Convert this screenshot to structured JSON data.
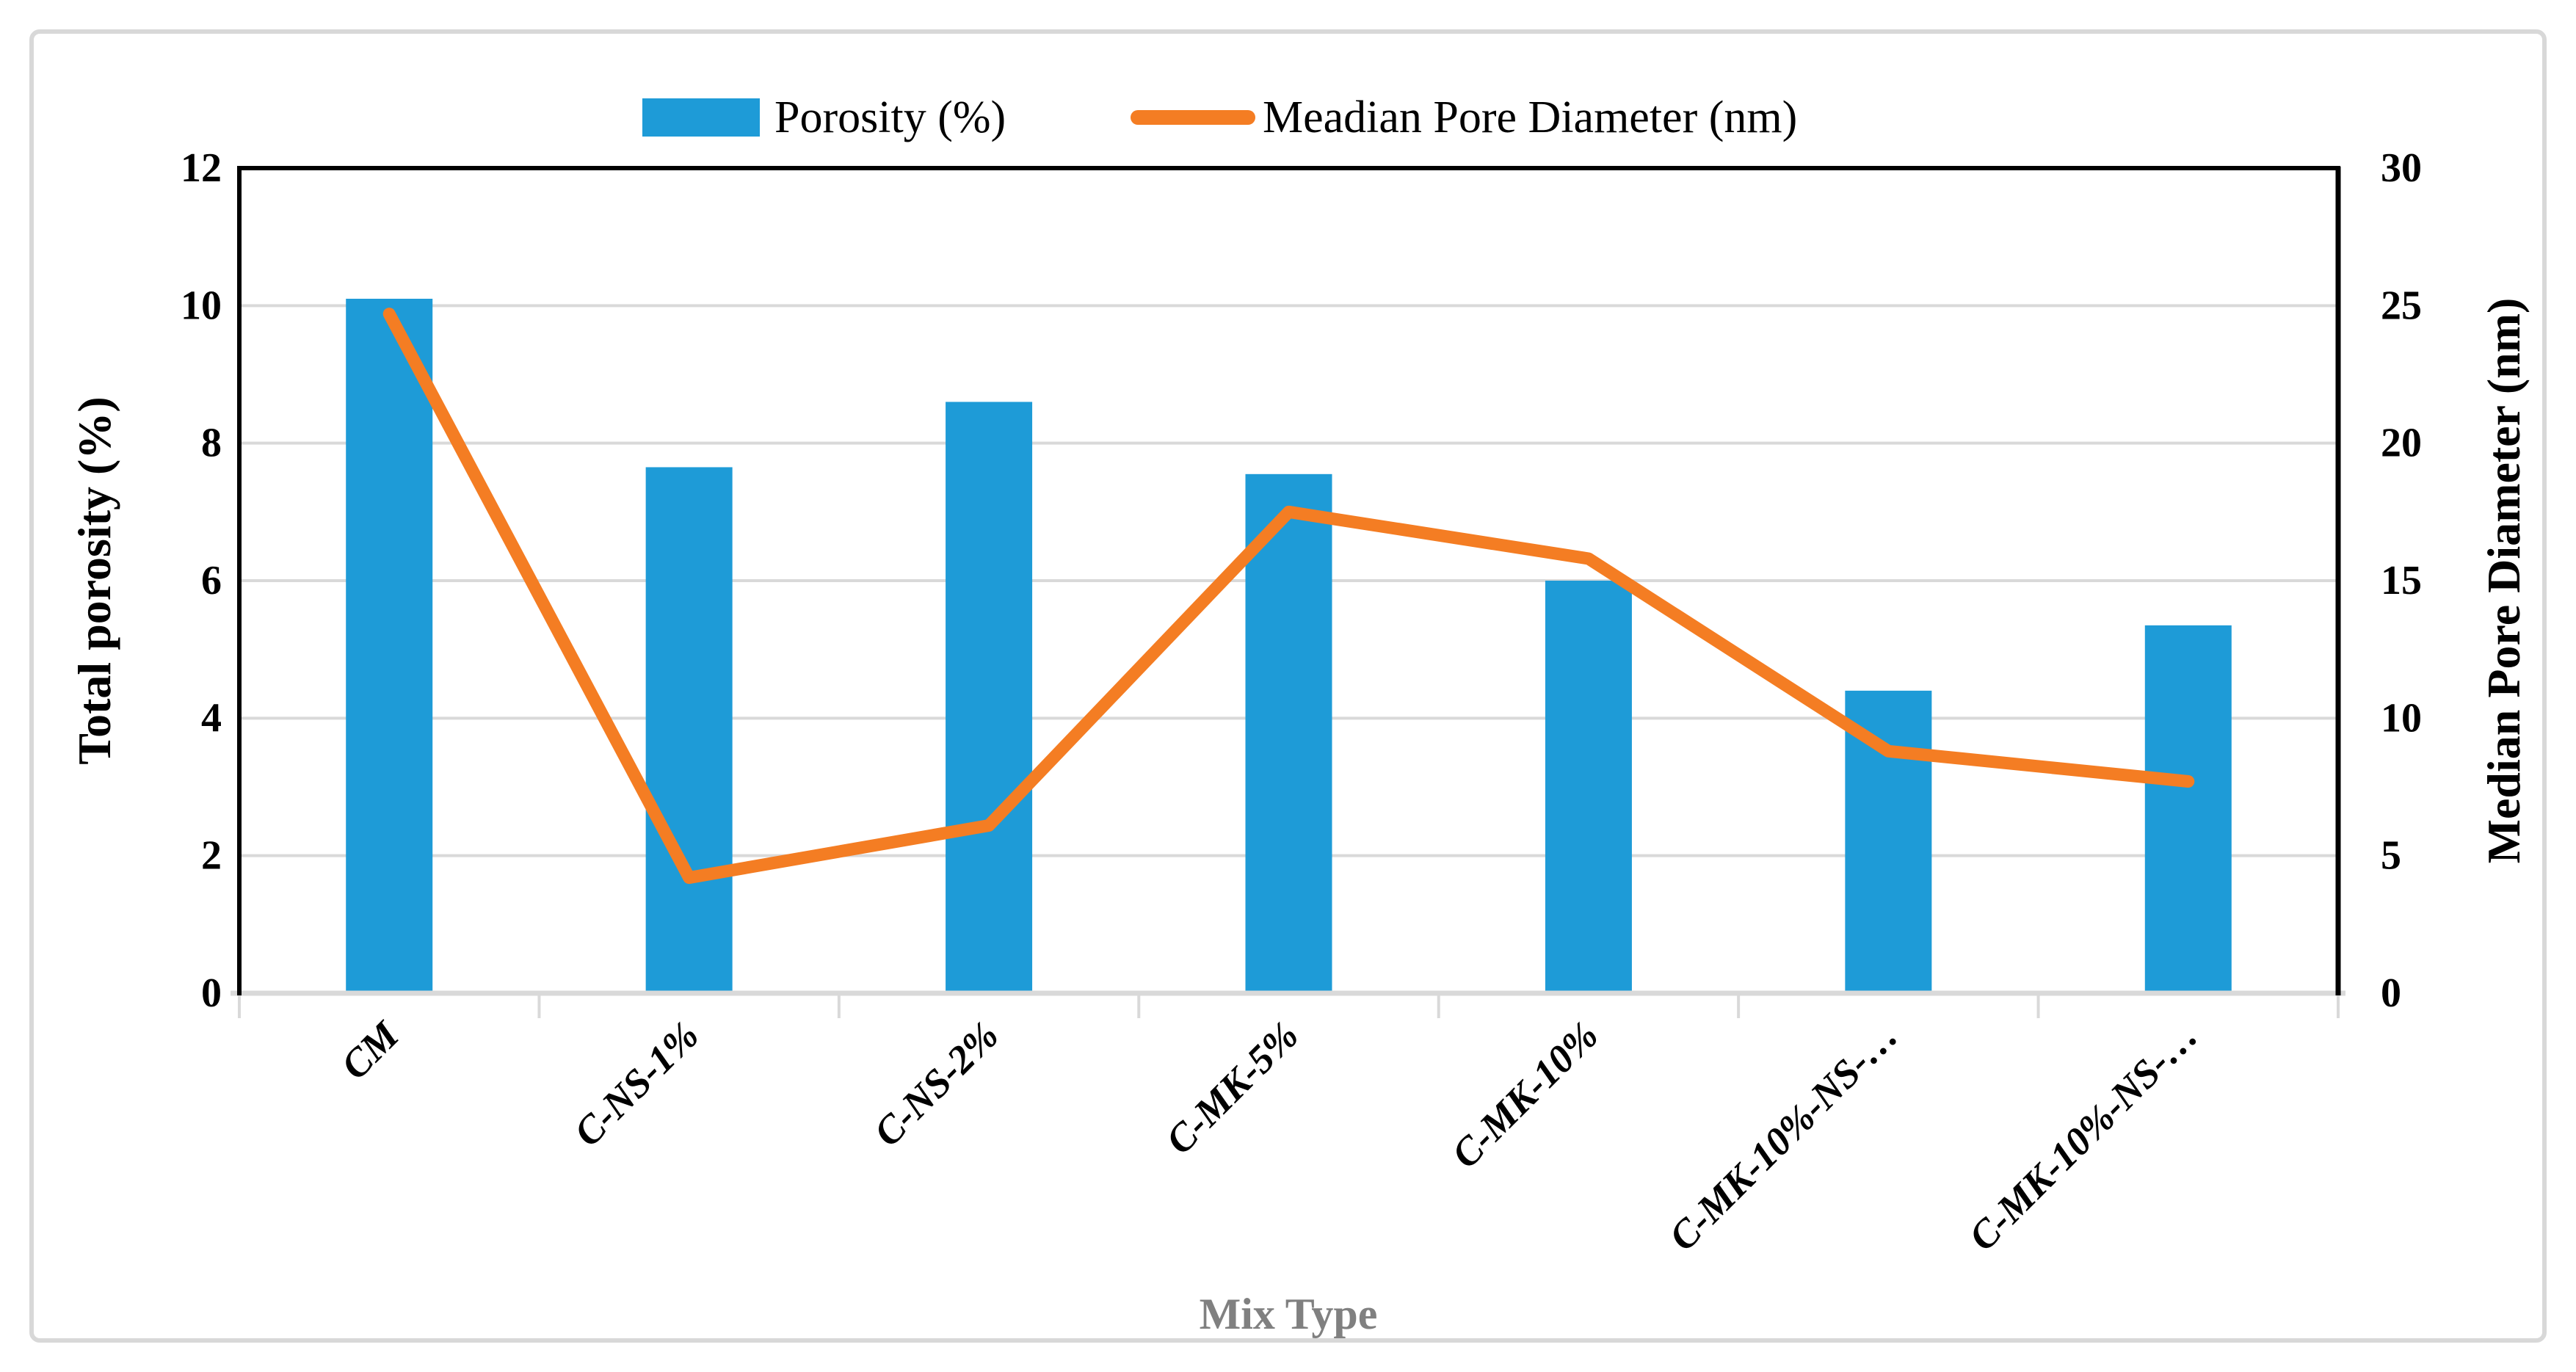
{
  "figure": {
    "background": "#ffffff",
    "frame_border_color": "#d8d8d8"
  },
  "legend": {
    "position": "top",
    "items": [
      {
        "label": "Porosity (%)",
        "swatch": "bar"
      },
      {
        "label": "Meadian Pore Diameter (nm)",
        "swatch": "line"
      }
    ]
  },
  "chart_data": {
    "type": "bar+line combo",
    "categories": [
      "CM",
      "C-NS-1%",
      "C-NS-2%",
      "C-MK-5%",
      "C-MK-10%",
      "C-MK-10%-NS-…",
      "C-MK-10%-NS-…"
    ],
    "series": [
      {
        "name": "Porosity (%)",
        "type": "bar",
        "axis": "left",
        "color": "#1e9bd7",
        "values": [
          10.1,
          7.65,
          8.6,
          7.55,
          6.0,
          4.4,
          5.35
        ]
      },
      {
        "name": "Meadian Pore Diameter (nm)",
        "type": "line",
        "axis": "right",
        "color": "#f47d23",
        "values": [
          24.7,
          4.2,
          6.1,
          17.5,
          15.8,
          8.8,
          7.7
        ]
      }
    ],
    "left_axis": {
      "title": "Total porosity (%)",
      "min": 0,
      "max": 12,
      "step": 2,
      "ticks": [
        0,
        2,
        4,
        6,
        8,
        10,
        12
      ]
    },
    "right_axis": {
      "title": "Median Pore Diameter (nm)",
      "min": 0,
      "max": 30,
      "step": 5,
      "ticks": [
        0,
        5,
        10,
        15,
        20,
        25,
        30
      ]
    },
    "x_axis": {
      "title": "Mix Type",
      "title_color": "#808080",
      "label_rotation": -45
    },
    "grid": {
      "show": true,
      "color": "#d9d9d9"
    },
    "axis_lines": {
      "border_color": "#000000",
      "bottom_color": "#d9d9d9"
    }
  }
}
